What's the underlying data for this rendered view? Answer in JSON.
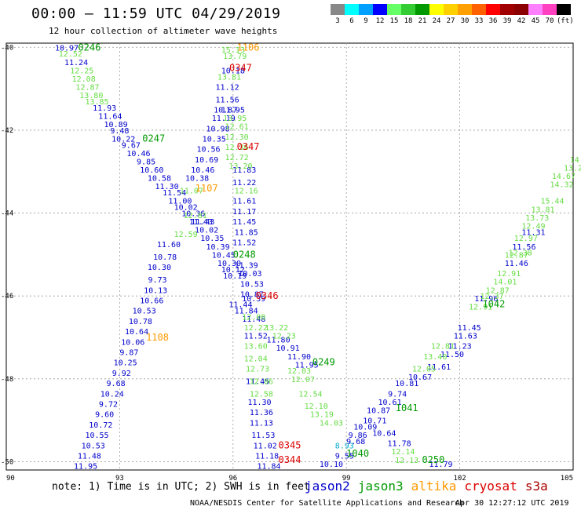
{
  "title": "00:00 – 11:59 UTC 04/29/2019",
  "subtitle": "12 hour collection of altimeter wave heights",
  "color_scale": {
    "labels": [
      "3",
      "6",
      "9",
      "12",
      "15",
      "18",
      "21",
      "24",
      "27",
      "30",
      "33",
      "36",
      "39",
      "42",
      "45",
      "70",
      "(ft)"
    ],
    "colors": [
      "#888888",
      "#00ffff",
      "#00a0ff",
      "#0000ff",
      "#66ff66",
      "#33cc33",
      "#009900",
      "#ffff00",
      "#ffd000",
      "#ffa000",
      "#ff6000",
      "#ff0000",
      "#a00000",
      "#8b0000",
      "#ff80ff",
      "#ff40c0",
      "#000000"
    ]
  },
  "note": "note: 1) Time is in UTC; 2) SWH is in feet",
  "satellites": [
    {
      "name": "jason2",
      "color": "#0000cc"
    },
    {
      "name": "jason3",
      "color": "#009900"
    },
    {
      "name": "altika",
      "color": "#ff9900"
    },
    {
      "name": "cryosat",
      "color": "#dd0000"
    },
    {
      "name": "s3a",
      "color": "#aa0000"
    }
  ],
  "credit": "NOAA/NESDIS Center for Satellite Applications and Research",
  "timestamp": "Apr 30 12:27:12 UTC 2019",
  "map": {
    "x_ticks": [
      "90",
      "93",
      "96",
      "99",
      "102",
      "105"
    ],
    "y_ticks": [
      "-40",
      "-42",
      "-44",
      "-46",
      "-48",
      "-50"
    ],
    "colors": {
      "jason2": "#0000cc",
      "jason3": "#009900",
      "light": "#66dd44",
      "altika": "#ff9900",
      "cryosat": "#dd0000",
      "cyan": "#00aacc"
    },
    "time_labels": [
      {
        "t": "0246",
        "c": "jason3",
        "lon": 92.2,
        "lat": -40.0
      },
      {
        "t": "0247",
        "c": "jason3",
        "lon": 93.9,
        "lat": -42.2
      },
      {
        "t": "0248",
        "c": "jason3",
        "lon": 96.3,
        "lat": -45.0
      },
      {
        "t": "0249",
        "c": "jason3",
        "lon": 98.4,
        "lat": -47.6
      },
      {
        "t": "1040",
        "c": "jason3",
        "lon": 99.3,
        "lat": -49.8
      },
      {
        "t": "1041",
        "c": "jason3",
        "lon": 100.6,
        "lat": -48.7
      },
      {
        "t": "1042",
        "c": "jason3",
        "lon": 102.9,
        "lat": -46.2
      },
      {
        "t": "0250",
        "c": "jason3",
        "lon": 101.3,
        "lat": -49.95
      },
      {
        "t": "1106",
        "c": "altika",
        "lon": 96.4,
        "lat": -40.0
      },
      {
        "t": "1107",
        "c": "altika",
        "lon": 95.3,
        "lat": -43.4
      },
      {
        "t": "1108",
        "c": "altika",
        "lon": 94.0,
        "lat": -47.0
      },
      {
        "t": "0347",
        "c": "cryosat",
        "lon": 96.2,
        "lat": -40.5
      },
      {
        "t": "0347",
        "c": "cryosat",
        "lon": 96.4,
        "lat": -42.4
      },
      {
        "t": "0346",
        "c": "cryosat",
        "lon": 96.9,
        "lat": -46.0
      },
      {
        "t": "0345",
        "c": "cryosat",
        "lon": 97.5,
        "lat": -49.6
      },
      {
        "t": "0344",
        "c": "cryosat",
        "lon": 97.5,
        "lat": -49.95
      }
    ],
    "tracks": [
      {
        "c": "jason2",
        "pts": [
          [
            "10.97",
            91.6,
            -40.0
          ],
          [
            "11.24",
            91.85,
            -40.35
          ],
          [
            "11.93",
            92.6,
            -41.45
          ],
          [
            "11.64",
            92.75,
            -41.65
          ],
          [
            "10.89",
            92.9,
            -41.85
          ],
          [
            "9.48",
            93.0,
            -42.0
          ],
          [
            "10.22",
            93.1,
            -42.2
          ],
          [
            "9.67",
            93.3,
            -42.35
          ],
          [
            "10.46",
            93.5,
            -42.55
          ],
          [
            "9.85",
            93.7,
            -42.75
          ],
          [
            "10.60",
            93.85,
            -42.95
          ],
          [
            "10.58",
            94.05,
            -43.15
          ],
          [
            "11.30",
            94.25,
            -43.35
          ],
          [
            "11.54",
            94.45,
            -43.5
          ],
          [
            "11.00",
            94.6,
            -43.7
          ],
          [
            "10.02",
            94.75,
            -43.85
          ],
          [
            "10.36",
            94.95,
            -44.0
          ],
          [
            "11.43",
            95.15,
            -44.2
          ],
          [
            "10.02",
            95.3,
            -44.4
          ],
          [
            "10.35",
            95.45,
            -44.6
          ],
          [
            "10.39",
            95.6,
            -44.8
          ],
          [
            "10.45",
            95.75,
            -45.0
          ],
          [
            "10.30",
            95.9,
            -45.2
          ],
          [
            "10.12",
            96.0,
            -45.35
          ],
          [
            "10.19",
            96.05,
            -45.5
          ],
          [
            "11.44",
            96.2,
            -46.2
          ],
          [
            "11.84",
            96.35,
            -46.35
          ],
          [
            "11.48",
            96.55,
            -46.55
          ],
          [
            "11.52",
            96.6,
            -46.95
          ],
          [
            "11.80",
            97.2,
            -47.05
          ],
          [
            "10.91",
            97.45,
            -47.25
          ],
          [
            "11.90",
            97.75,
            -47.45
          ],
          [
            "11.95",
            97.95,
            -47.65
          ]
        ]
      },
      {
        "c": "jason2",
        "pts": [
          [
            "10.18",
            96.0,
            -40.55
          ],
          [
            "11.12",
            95.85,
            -40.95
          ],
          [
            "11.56",
            95.85,
            -41.25
          ],
          [
            "10.87",
            95.8,
            -41.5
          ],
          [
            "11.95",
            96.0,
            -41.5
          ],
          [
            "11.19",
            95.75,
            -41.7
          ],
          [
            "10.98",
            95.6,
            -41.95
          ],
          [
            "10.35",
            95.5,
            -42.2
          ],
          [
            "10.56",
            95.35,
            -42.45
          ],
          [
            "10.69",
            95.3,
            -42.7
          ],
          [
            "10.46",
            95.2,
            -42.95
          ],
          [
            "10.38",
            95.05,
            -43.15
          ],
          [
            "11.43",
            95.2,
            -44.2
          ],
          [
            "11.60",
            94.3,
            -44.75
          ],
          [
            "10.78",
            94.2,
            -45.05
          ],
          [
            "10.30",
            94.05,
            -45.3
          ],
          [
            "9.73",
            94.0,
            -45.6
          ],
          [
            "10.13",
            93.95,
            -45.85
          ],
          [
            "10.66",
            93.85,
            -46.1
          ],
          [
            "10.53",
            93.65,
            -46.35
          ],
          [
            "10.78",
            93.55,
            -46.6
          ],
          [
            "10.64",
            93.45,
            -46.85
          ],
          [
            "10.06",
            93.35,
            -47.1
          ],
          [
            "9.87",
            93.25,
            -47.35
          ],
          [
            "10.25",
            93.15,
            -47.6
          ],
          [
            "9.92",
            93.05,
            -47.85
          ],
          [
            "9.68",
            92.9,
            -48.1
          ],
          [
            "10.24",
            92.8,
            -48.35
          ],
          [
            "9.72",
            92.7,
            -48.6
          ],
          [
            "9.60",
            92.6,
            -48.85
          ],
          [
            "10.72",
            92.5,
            -49.1
          ],
          [
            "10.55",
            92.4,
            -49.35
          ],
          [
            "10.53",
            92.3,
            -49.6
          ],
          [
            "11.48",
            92.2,
            -49.85
          ],
          [
            "11.95",
            92.1,
            -50.1
          ]
        ]
      },
      {
        "c": "jason2",
        "pts": [
          [
            "11.83",
            96.3,
            -42.95
          ],
          [
            "11.22",
            96.3,
            -43.25
          ],
          [
            "11.61",
            96.3,
            -43.7
          ],
          [
            "11.17",
            96.3,
            -43.95
          ],
          [
            "11.45",
            96.3,
            -44.2
          ],
          [
            "11.85",
            96.35,
            -44.45
          ],
          [
            "11.52",
            96.3,
            -44.7
          ],
          [
            "11.39",
            96.35,
            -45.25
          ],
          [
            "10.03",
            96.45,
            -45.45
          ],
          [
            "10.53",
            96.5,
            -45.7
          ],
          [
            "10.87",
            96.5,
            -45.95
          ],
          [
            "10.39",
            96.55,
            -46.05
          ],
          [
            "11.45",
            96.65,
            -48.05
          ],
          [
            "11.30",
            96.7,
            -48.55
          ],
          [
            "11.36",
            96.75,
            -48.8
          ],
          [
            "11.13",
            96.75,
            -49.05
          ],
          [
            "11.53",
            96.8,
            -49.35
          ],
          [
            "11.02",
            96.85,
            -49.6
          ],
          [
            "11.18",
            96.9,
            -49.85
          ],
          [
            "11.84",
            96.95,
            -50.1
          ]
        ]
      },
      {
        "c": "jason2",
        "pts": [
          [
            "10.81",
            100.6,
            -48.1
          ],
          [
            "9.74",
            100.35,
            -48.35
          ],
          [
            "10.61",
            100.15,
            -48.55
          ],
          [
            "10.87",
            99.85,
            -48.75
          ],
          [
            "10.71",
            99.75,
            -49.0
          ],
          [
            "10.09",
            99.5,
            -49.15
          ],
          [
            "9.86",
            99.3,
            -49.35
          ],
          [
            "9.55",
            98.95,
            -49.85
          ],
          [
            "10.10",
            98.6,
            -50.05
          ],
          [
            "10.64",
            100.0,
            -49.3
          ],
          [
            "11.78",
            100.4,
            -49.55
          ],
          [
            "11.79",
            101.5,
            -50.05
          ],
          [
            "10.67",
            100.95,
            -47.95
          ],
          [
            "11.61",
            101.45,
            -47.7
          ],
          [
            "11.50",
            101.8,
            -47.4
          ],
          [
            "11.23",
            102.0,
            -47.2
          ],
          [
            "11.63",
            102.15,
            -46.95
          ],
          [
            "11.45",
            102.25,
            -46.75
          ],
          [
            "11.96",
            102.7,
            -46.05
          ],
          [
            "11.46",
            103.5,
            -45.2
          ],
          [
            "11.56",
            103.7,
            -44.8
          ],
          [
            "11.31",
            103.95,
            -44.45
          ],
          [
            "9.68",
            99.25,
            -49.5
          ]
        ]
      },
      {
        "c": "light",
        "pts": [
          [
            "12.52",
            91.7,
            -40.15
          ],
          [
            "12.25",
            92.0,
            -40.55
          ],
          [
            "12.08",
            92.05,
            -40.75
          ],
          [
            "12.87",
            92.15,
            -40.95
          ],
          [
            "13.80",
            92.25,
            -41.15
          ],
          [
            "13.85",
            92.4,
            -41.3
          ],
          [
            "15.13",
            96.0,
            -40.05
          ],
          [
            "13.79",
            96.05,
            -40.2
          ],
          [
            "13.81",
            95.9,
            -40.7
          ],
          [
            "13.95",
            96.05,
            -41.7
          ],
          [
            "12.61",
            96.1,
            -41.9
          ],
          [
            "12.30",
            96.1,
            -42.15
          ],
          [
            "12.36",
            96.1,
            -42.4
          ],
          [
            "12.72",
            96.1,
            -42.65
          ],
          [
            "13.20",
            96.2,
            -42.85
          ],
          [
            "12.16",
            96.35,
            -43.45
          ],
          [
            "11.07",
            94.9,
            -43.45
          ],
          [
            "12.81",
            95.0,
            -44.05
          ],
          [
            "12.59",
            94.75,
            -44.5
          ],
          [
            "12.08",
            96.55,
            -46.5
          ],
          [
            "12.22",
            96.6,
            -46.75
          ],
          [
            "13.22",
            97.15,
            -46.75
          ],
          [
            "12.23",
            97.35,
            -46.95
          ],
          [
            "13.60",
            96.6,
            -47.2
          ],
          [
            "12.04",
            96.6,
            -47.5
          ],
          [
            "12.73",
            96.65,
            -47.75
          ],
          [
            "12.06",
            96.75,
            -48.05
          ],
          [
            "12.58",
            96.75,
            -48.35
          ],
          [
            "12.03",
            97.75,
            -47.8
          ],
          [
            "12.07",
            97.85,
            -48.0
          ],
          [
            "12.54",
            98.05,
            -48.35
          ],
          [
            "12.10",
            98.2,
            -48.65
          ],
          [
            "13.19",
            98.35,
            -48.85
          ],
          [
            "14.03",
            98.6,
            -49.05
          ],
          [
            "12.14",
            100.5,
            -49.75
          ],
          [
            "12.13",
            100.6,
            -49.95
          ],
          [
            "12.05",
            101.05,
            -47.75
          ],
          [
            "13.40",
            101.35,
            -47.45
          ],
          [
            "12.81",
            101.55,
            -47.2
          ],
          [
            "12.91",
            102.55,
            -46.25
          ],
          [
            "12.37",
            102.85,
            -46.0
          ],
          [
            "12.87",
            103.0,
            -45.85
          ],
          [
            "14.01",
            103.2,
            -45.65
          ],
          [
            "12.91",
            103.3,
            -45.45
          ],
          [
            "12.87",
            103.5,
            -45.0
          ],
          [
            "12.38",
            103.6,
            -44.95
          ],
          [
            "12.97",
            103.75,
            -44.6
          ],
          [
            "12.49",
            103.95,
            -44.3
          ],
          [
            "13.73",
            104.05,
            -44.1
          ],
          [
            "13.81",
            104.2,
            -43.9
          ],
          [
            "15.44",
            104.45,
            -43.7
          ],
          [
            "14.32",
            104.7,
            -43.3
          ],
          [
            "14.67",
            104.75,
            -43.1
          ],
          [
            "13.2",
            105.0,
            -42.9
          ],
          [
            "14.",
            105.1,
            -42.7
          ]
        ]
      },
      {
        "c": "cyan",
        "pts": [
          [
            "8.93",
            98.95,
            -49.6
          ]
        ]
      }
    ]
  }
}
